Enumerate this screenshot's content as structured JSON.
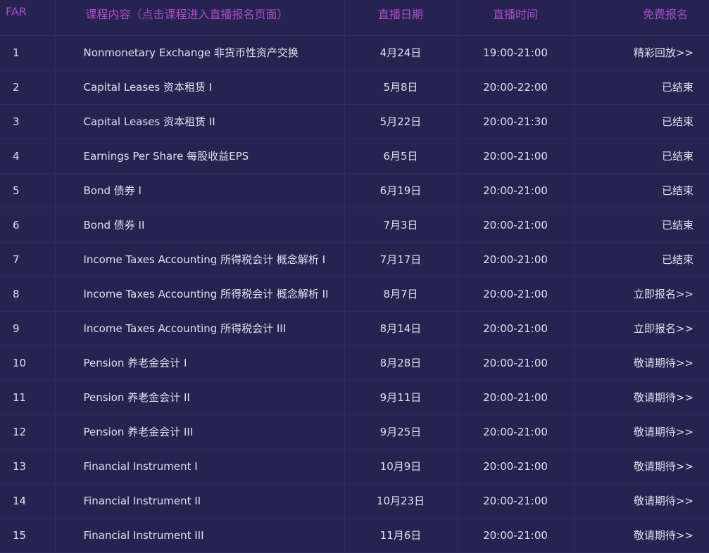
{
  "header": {
    "col_index": "FAR",
    "col_course": "课程内容（点击课程进入直播报名页面）",
    "col_date": "直播日期",
    "col_time": "直播时间",
    "col_signup": "免费报名"
  },
  "colors": {
    "background": "#262350",
    "header_text": "#a94cc6",
    "body_text": "#e2def2"
  },
  "rows": [
    {
      "no": "1",
      "course": "Nonmonetary Exchange 非货币性资产交换",
      "date": "4月24日",
      "time": "19:00-21:00",
      "status": "精彩回放>>"
    },
    {
      "no": "2",
      "course": "Capital Leases 资本租赁 I",
      "date": "5月8日",
      "time": "20:00-22:00",
      "status": "已结束"
    },
    {
      "no": "3",
      "course": "Capital Leases 资本租赁 II",
      "date": "5月22日",
      "time": "20:00-21:30",
      "status": "已结束"
    },
    {
      "no": "4",
      "course": "Earnings Per Share 每股收益EPS",
      "date": "6月5日",
      "time": "20:00-21:00",
      "status": "已结束"
    },
    {
      "no": "5",
      "course": "Bond 债券 I",
      "date": "6月19日",
      "time": "20:00-21:00",
      "status": "已结束"
    },
    {
      "no": "6",
      "course": "Bond 债券 II",
      "date": "7月3日",
      "time": "20:00-21:00",
      "status": "已结束"
    },
    {
      "no": "7",
      "course": "Income Taxes Accounting 所得税会计 概念解析 I",
      "date": "7月17日",
      "time": "20:00-21:00",
      "status": "已结束"
    },
    {
      "no": "8",
      "course": "Income Taxes Accounting 所得税会计 概念解析 II",
      "date": "8月7日",
      "time": "20:00-21:00",
      "status": "立即报名>>"
    },
    {
      "no": "9",
      "course": "Income Taxes Accounting 所得税会计 III",
      "date": "8月14日",
      "time": "20:00-21:00",
      "status": "立即报名>>"
    },
    {
      "no": "10",
      "course": "Pension 养老金会计 I",
      "date": "8月28日",
      "time": "20:00-21:00",
      "status": "敬请期待>>"
    },
    {
      "no": "11",
      "course": "Pension 养老金会计 II",
      "date": "9月11日",
      "time": "20:00-21:00",
      "status": "敬请期待>>"
    },
    {
      "no": "12",
      "course": "Pension 养老金会计 III",
      "date": "9月25日",
      "time": "20:00-21:00",
      "status": "敬请期待>>"
    },
    {
      "no": "13",
      "course": "Financial Instrument I",
      "date": "10月9日",
      "time": "20:00-21:00",
      "status": "敬请期待>>"
    },
    {
      "no": "14",
      "course": "Financial Instrument II",
      "date": "10月23日",
      "time": "20:00-21:00",
      "status": "敬请期待>>"
    },
    {
      "no": "15",
      "course": "Financial Instrument III",
      "date": "11月6日",
      "time": "20:00-21:00",
      "status": "敬请期待>>"
    }
  ]
}
